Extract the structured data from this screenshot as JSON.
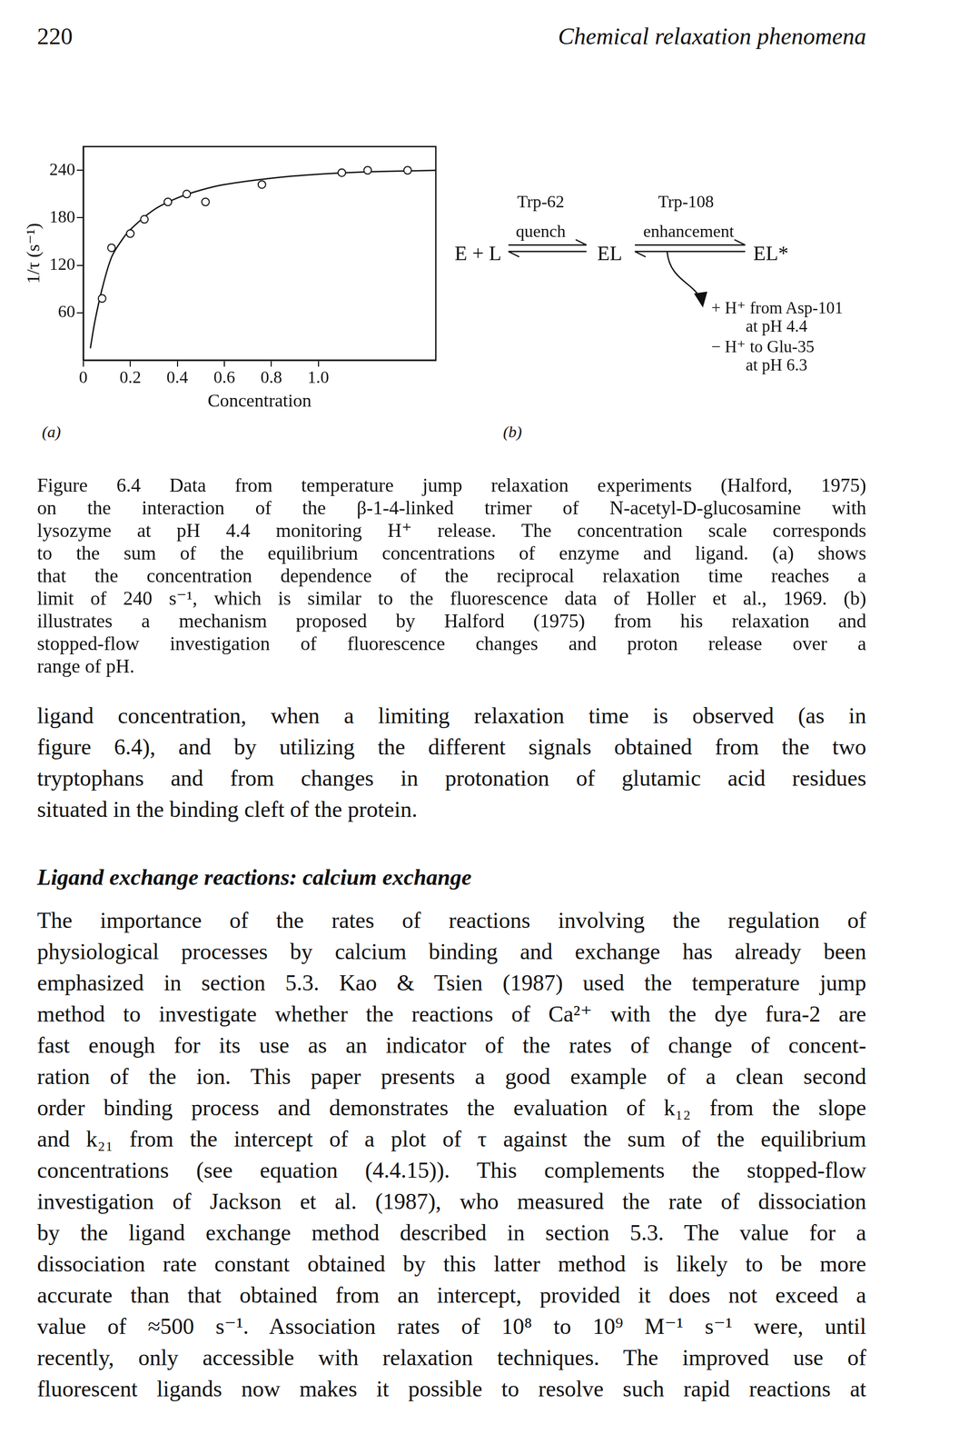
{
  "header": {
    "page_number": "220",
    "running_title": "Chemical relaxation phenomena"
  },
  "panel_labels": [
    "(a)",
    "(b)"
  ],
  "chart_data": {
    "type": "scatter",
    "x_label": "Concentration",
    "y_label": "1/τ (s⁻¹)",
    "xlim": [
      0,
      1.5
    ],
    "xticks": [
      0,
      0.2,
      0.4,
      0.6,
      0.8,
      {
        "value": 1,
        "label": "1.0"
      }
    ],
    "ylim": [
      0,
      270
    ],
    "yticks": [
      60,
      120,
      180,
      240
    ],
    "grid": false,
    "series": [
      {
        "type": "scatter",
        "marker": "circle",
        "color": "#111111",
        "x": [
          0.08,
          0.12,
          0.2,
          0.26,
          0.36,
          0.44,
          0.52,
          0.76,
          1.1,
          1.21,
          1.38
        ],
        "values": [
          78,
          142,
          160,
          178,
          200,
          210,
          200,
          222,
          237,
          240,
          240
        ]
      },
      {
        "type": "line",
        "line_style": "solid",
        "color": "#111111",
        "x": [
          0.03,
          0.05,
          0.08,
          0.12,
          0.16,
          0.2,
          0.3,
          0.4,
          0.5,
          0.6,
          0.8,
          1.0,
          1.2,
          1.5
        ],
        "values": [
          15,
          50,
          90,
          130,
          150,
          165,
          190,
          205,
          215,
          222,
          230,
          235,
          238,
          240
        ]
      }
    ]
  },
  "diagram": {
    "reactants": "E + L",
    "intermediate": "EL",
    "product": "EL*",
    "step1_above": "Trp-62",
    "step1_label": "quench",
    "step2_above": "Trp-108",
    "step2_label": "enhancement",
    "branch_lines": [
      "+ H⁺ from Asp-101",
      "at pH 4.4",
      "− H⁺ to Glu-35",
      "at pH 6.3"
    ]
  },
  "caption": [
    "Figure 6.4  Data from temperature jump relaxation experiments (Halford, 1975)",
    "on the interaction of the β-1-4-linked trimer of N-acetyl-D-glucosamine with",
    "lysozyme at pH 4.4 monitoring H⁺ release. The concentration scale corresponds",
    "to the sum of the equilibrium concentrations of enzyme and ligand. (a) shows",
    "that the concentration dependence of the reciprocal relaxation time reaches a",
    "limit of 240 s⁻¹, which is similar to the fluorescence data of Holler et al., 1969. (b)",
    "illustrates a mechanism proposed by Halford (1975) from his relaxation and",
    "stopped-flow investigation of fluorescence changes and proton release over a",
    "range of pH."
  ],
  "paragraph_1": [
    "ligand concentration, when a limiting relaxation time is observed (as in",
    "figure 6.4), and by utilizing the different signals obtained from the two",
    "tryptophans and from changes in protonation of glutamic acid residues",
    "situated in the binding cleft of the protein."
  ],
  "heading": "Ligand exchange reactions: calcium exchange",
  "paragraph_2": [
    "The importance of the rates of reactions involving the regulation of",
    "physiological processes by calcium binding and exchange has already been",
    "emphasized in section 5.3. Kao & Tsien (1987) used the temperature jump",
    "method to investigate whether the reactions of Ca²⁺ with the dye fura-2 are",
    "fast enough for its use as an indicator of the rates of change of concent-",
    "ration of the ion. This paper presents a good example of a clean second",
    "order binding process and demonstrates the evaluation of k₁₂ from the slope",
    "and k₂₁ from the intercept of a plot of τ against the sum of the equilibrium",
    "concentrations (see equation (4.4.15)). This complements the stopped-flow",
    "investigation of Jackson et al. (1987), who measured the rate of dissociation",
    "by the ligand exchange method described in section 5.3. The value for a",
    "dissociation rate constant obtained by this latter method is likely to be more",
    "accurate than that obtained from an intercept, provided it does not exceed a",
    "value of ≈500 s⁻¹. Association rates of 10⁸ to 10⁹ M⁻¹ s⁻¹ were, until",
    "recently, only accessible with relaxation techniques. The improved use of",
    "fluorescent ligands now makes it possible to resolve such rapid reactions at"
  ]
}
